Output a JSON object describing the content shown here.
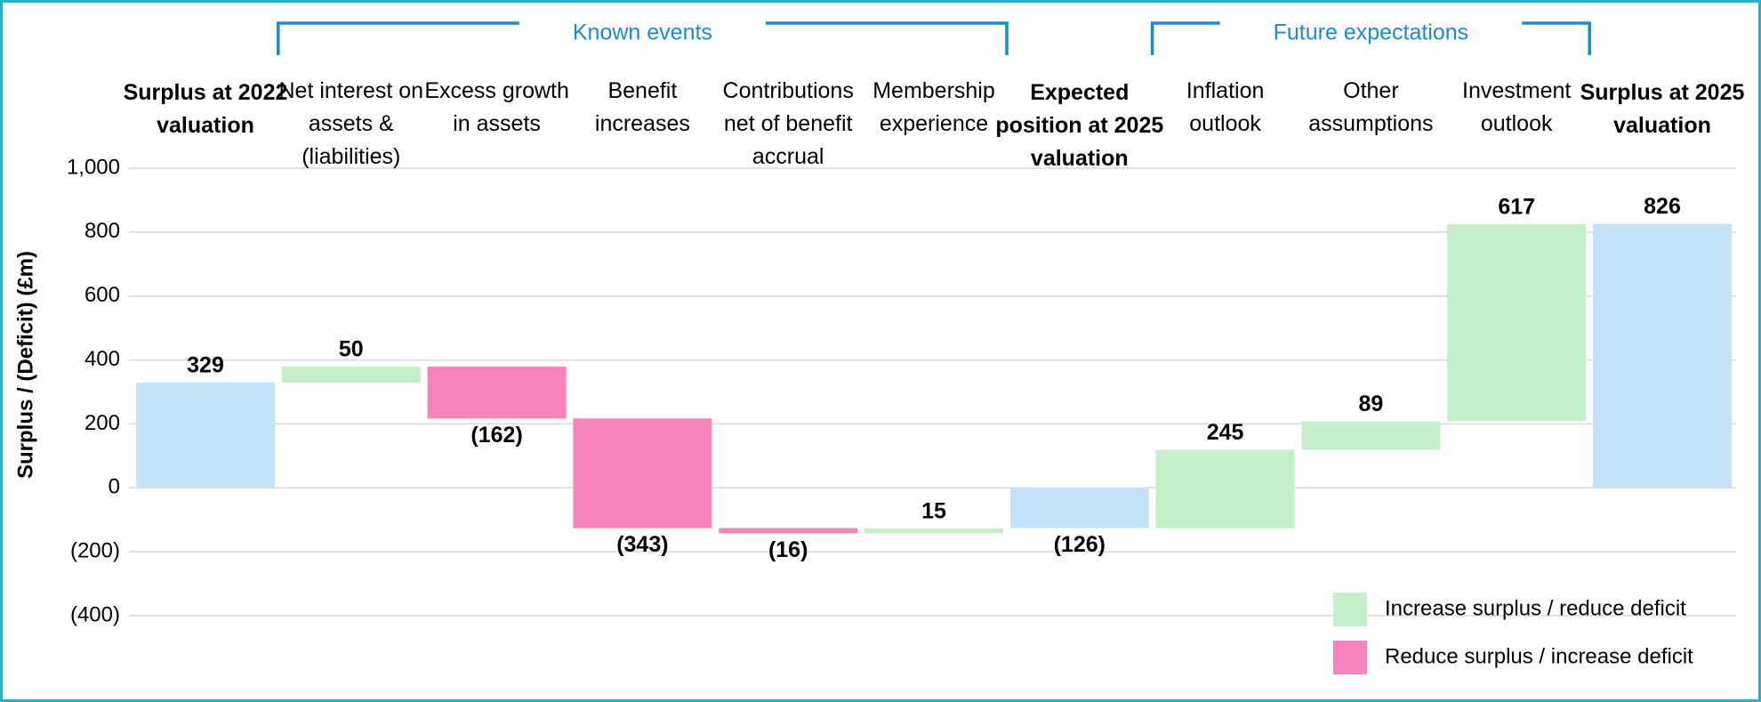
{
  "chart_data": {
    "type": "waterfall",
    "y_axis_label": "Surplus / (Deficit) (£m)",
    "categories": [
      "Surplus at 2022 valuation",
      "Net interest on assets & (liabilities)",
      "Excess growth in assets",
      "Benefit increases",
      "Contributions net of benefit accrual",
      "Membership experience",
      "Expected position at 2025 valuation",
      "Inflation outlook",
      "Other assumptions",
      "Investment outlook",
      "Surplus at 2025 valuation"
    ],
    "measures": [
      "total",
      "relative",
      "relative",
      "relative",
      "relative",
      "relative",
      "total",
      "relative",
      "relative",
      "relative",
      "total"
    ],
    "values": [
      329,
      50,
      -162,
      -343,
      -16,
      15,
      -126,
      245,
      89,
      617,
      826
    ],
    "value_labels": [
      "329",
      "50",
      "(162)",
      "(343)",
      "(16)",
      "15",
      "(126)",
      "245",
      "89",
      "617",
      "826"
    ],
    "total_color": "#c5e3f6",
    "increase_color": "#c3f0c8",
    "decrease_color": "#f783bb",
    "legend": [
      {
        "name": "Increase surplus / reduce deficit",
        "color": "#c3f0c8"
      },
      {
        "name": "Reduce surplus / increase deficit",
        "color": "#f783bb"
      }
    ],
    "groups": [
      {
        "label": "Known events"
      },
      {
        "label": "Future expectations"
      }
    ],
    "group_color": "#1a8ccc",
    "ylim": [
      -400,
      1000
    ],
    "yticks": [
      {
        "value": 1000,
        "label": "1,000"
      },
      800,
      600,
      400,
      200,
      0,
      {
        "value": -200,
        "label": "(200)"
      },
      {
        "value": -400,
        "label": "(400)"
      }
    ],
    "grid": true
  }
}
